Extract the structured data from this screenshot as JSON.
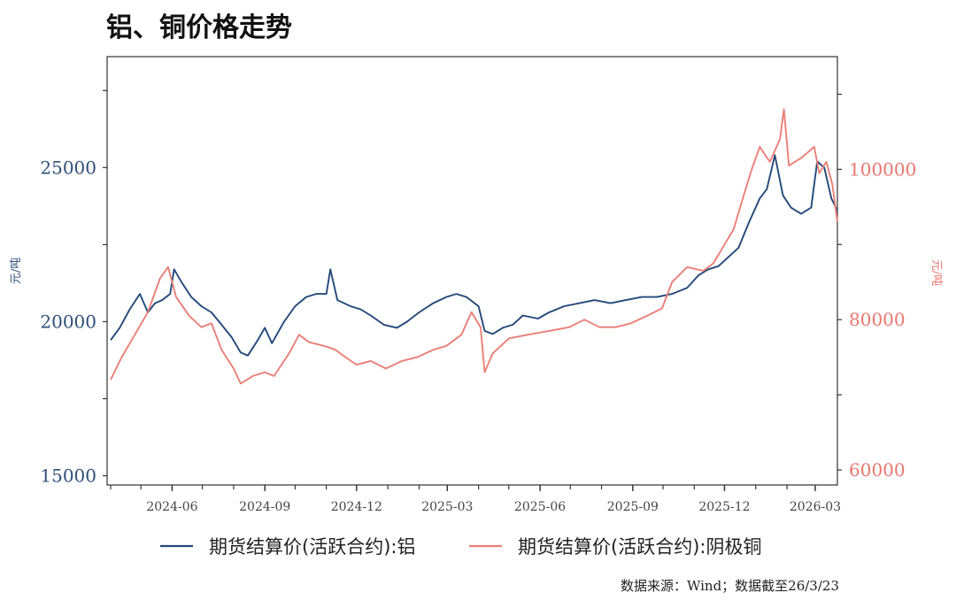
{
  "title": "铝、铜价格走势",
  "source": "数据来源：Wind；数据截至26/3/23",
  "chart_data": {
    "type": "line",
    "title": "铝、铜价格走势",
    "x_axis": {
      "tick_labels": [
        "2024-06",
        "2024-09",
        "2024-12",
        "2025-03",
        "2025-06",
        "2025-09",
        "2025-12",
        "2026-03"
      ],
      "tick_dates": [
        "2024-06-01",
        "2024-09-01",
        "2024-12-01",
        "2025-03-01",
        "2025-06-01",
        "2025-09-01",
        "2025-12-01",
        "2026-03-01"
      ],
      "range": [
        "2024-04-01",
        "2026-03-23"
      ]
    },
    "y_left": {
      "label": "元/吨",
      "ticks": [
        15000,
        20000,
        25000
      ],
      "range": [
        14700,
        28600
      ]
    },
    "y_right": {
      "label": "元/吨",
      "ticks": [
        60000,
        80000,
        100000
      ],
      "range": [
        58000,
        115000
      ]
    },
    "legend_position": "bottom",
    "grid": false,
    "series": [
      {
        "name": "期货结算价(活跃合约):铝",
        "axis": "left",
        "color": "#24497a",
        "points": [
          [
            "2024-04-01",
            19400
          ],
          [
            "2024-04-10",
            19800
          ],
          [
            "2024-04-20",
            20400
          ],
          [
            "2024-04-30",
            20900
          ],
          [
            "2024-05-08",
            20300
          ],
          [
            "2024-05-15",
            20600
          ],
          [
            "2024-05-22",
            20700
          ],
          [
            "2024-05-30",
            20900
          ],
          [
            "2024-06-03",
            21700
          ],
          [
            "2024-06-10",
            21300
          ],
          [
            "2024-06-20",
            20800
          ],
          [
            "2024-06-30",
            20500
          ],
          [
            "2024-07-10",
            20300
          ],
          [
            "2024-07-20",
            19900
          ],
          [
            "2024-07-30",
            19500
          ],
          [
            "2024-08-08",
            19000
          ],
          [
            "2024-08-15",
            18900
          ],
          [
            "2024-08-25",
            19400
          ],
          [
            "2024-09-01",
            19800
          ],
          [
            "2024-09-08",
            19300
          ],
          [
            "2024-09-20",
            20000
          ],
          [
            "2024-10-01",
            20500
          ],
          [
            "2024-10-12",
            20800
          ],
          [
            "2024-10-22",
            20900
          ],
          [
            "2024-11-01",
            20900
          ],
          [
            "2024-11-05",
            21700
          ],
          [
            "2024-11-12",
            20700
          ],
          [
            "2024-11-25",
            20500
          ],
          [
            "2024-12-05",
            20400
          ],
          [
            "2024-12-15",
            20200
          ],
          [
            "2024-12-28",
            19900
          ],
          [
            "2025-01-10",
            19800
          ],
          [
            "2025-01-20",
            20000
          ],
          [
            "2025-02-01",
            20300
          ],
          [
            "2025-02-15",
            20600
          ],
          [
            "2025-02-28",
            20800
          ],
          [
            "2025-03-10",
            20900
          ],
          [
            "2025-03-20",
            20800
          ],
          [
            "2025-04-01",
            20500
          ],
          [
            "2025-04-07",
            19700
          ],
          [
            "2025-04-15",
            19600
          ],
          [
            "2025-04-25",
            19800
          ],
          [
            "2025-05-05",
            19900
          ],
          [
            "2025-05-15",
            20200
          ],
          [
            "2025-05-30",
            20100
          ],
          [
            "2025-06-10",
            20300
          ],
          [
            "2025-06-25",
            20500
          ],
          [
            "2025-07-10",
            20600
          ],
          [
            "2025-07-25",
            20700
          ],
          [
            "2025-08-10",
            20600
          ],
          [
            "2025-08-25",
            20700
          ],
          [
            "2025-09-10",
            20800
          ],
          [
            "2025-09-25",
            20800
          ],
          [
            "2025-10-10",
            20900
          ],
          [
            "2025-10-25",
            21100
          ],
          [
            "2025-11-05",
            21500
          ],
          [
            "2025-11-15",
            21700
          ],
          [
            "2025-11-25",
            21800
          ],
          [
            "2025-12-05",
            22100
          ],
          [
            "2025-12-15",
            22400
          ],
          [
            "2025-12-25",
            23200
          ],
          [
            "2026-01-05",
            24000
          ],
          [
            "2026-01-12",
            24300
          ],
          [
            "2026-01-20",
            25400
          ],
          [
            "2026-01-28",
            24100
          ],
          [
            "2026-02-05",
            23700
          ],
          [
            "2026-02-15",
            23500
          ],
          [
            "2026-02-25",
            23700
          ],
          [
            "2026-03-03",
            25200
          ],
          [
            "2026-03-10",
            25000
          ],
          [
            "2026-03-17",
            24000
          ],
          [
            "2026-03-23",
            23600
          ]
        ]
      },
      {
        "name": "期货结算价(活跃合约):阴极铜",
        "axis": "right",
        "color": "#ea7f77",
        "points": [
          [
            "2024-04-01",
            72000
          ],
          [
            "2024-04-12",
            75000
          ],
          [
            "2024-04-25",
            78000
          ],
          [
            "2024-05-08",
            81000
          ],
          [
            "2024-05-20",
            85500
          ],
          [
            "2024-05-28",
            87000
          ],
          [
            "2024-06-05",
            83000
          ],
          [
            "2024-06-18",
            80500
          ],
          [
            "2024-06-30",
            79000
          ],
          [
            "2024-07-10",
            79500
          ],
          [
            "2024-07-20",
            76000
          ],
          [
            "2024-08-01",
            73500
          ],
          [
            "2024-08-08",
            71500
          ],
          [
            "2024-08-20",
            72500
          ],
          [
            "2024-09-01",
            73000
          ],
          [
            "2024-09-10",
            72500
          ],
          [
            "2024-09-25",
            75500
          ],
          [
            "2024-10-05",
            78000
          ],
          [
            "2024-10-15",
            77000
          ],
          [
            "2024-10-30",
            76500
          ],
          [
            "2024-11-10",
            76000
          ],
          [
            "2024-11-20",
            75000
          ],
          [
            "2024-12-01",
            74000
          ],
          [
            "2024-12-15",
            74500
          ],
          [
            "2024-12-30",
            73500
          ],
          [
            "2025-01-15",
            74500
          ],
          [
            "2025-01-30",
            75000
          ],
          [
            "2025-02-15",
            76000
          ],
          [
            "2025-02-28",
            76500
          ],
          [
            "2025-03-15",
            78000
          ],
          [
            "2025-03-25",
            81000
          ],
          [
            "2025-04-03",
            79000
          ],
          [
            "2025-04-07",
            73000
          ],
          [
            "2025-04-15",
            75500
          ],
          [
            "2025-05-01",
            77500
          ],
          [
            "2025-05-20",
            78000
          ],
          [
            "2025-06-10",
            78500
          ],
          [
            "2025-06-30",
            79000
          ],
          [
            "2025-07-15",
            80000
          ],
          [
            "2025-07-30",
            79000
          ],
          [
            "2025-08-15",
            79000
          ],
          [
            "2025-08-30",
            79500
          ],
          [
            "2025-09-15",
            80500
          ],
          [
            "2025-09-30",
            81500
          ],
          [
            "2025-10-10",
            85000
          ],
          [
            "2025-10-25",
            87000
          ],
          [
            "2025-11-10",
            86500
          ],
          [
            "2025-11-20",
            87500
          ],
          [
            "2025-12-01",
            90000
          ],
          [
            "2025-12-10",
            92000
          ],
          [
            "2025-12-20",
            96500
          ],
          [
            "2025-12-28",
            100000
          ],
          [
            "2026-01-05",
            103000
          ],
          [
            "2026-01-15",
            101000
          ],
          [
            "2026-01-25",
            104000
          ],
          [
            "2026-01-29",
            108000
          ],
          [
            "2026-02-03",
            100500
          ],
          [
            "2026-02-15",
            101500
          ],
          [
            "2026-02-28",
            103000
          ],
          [
            "2026-03-05",
            99500
          ],
          [
            "2026-03-12",
            101000
          ],
          [
            "2026-03-18",
            98000
          ],
          [
            "2026-03-23",
            93000
          ]
        ]
      }
    ]
  }
}
